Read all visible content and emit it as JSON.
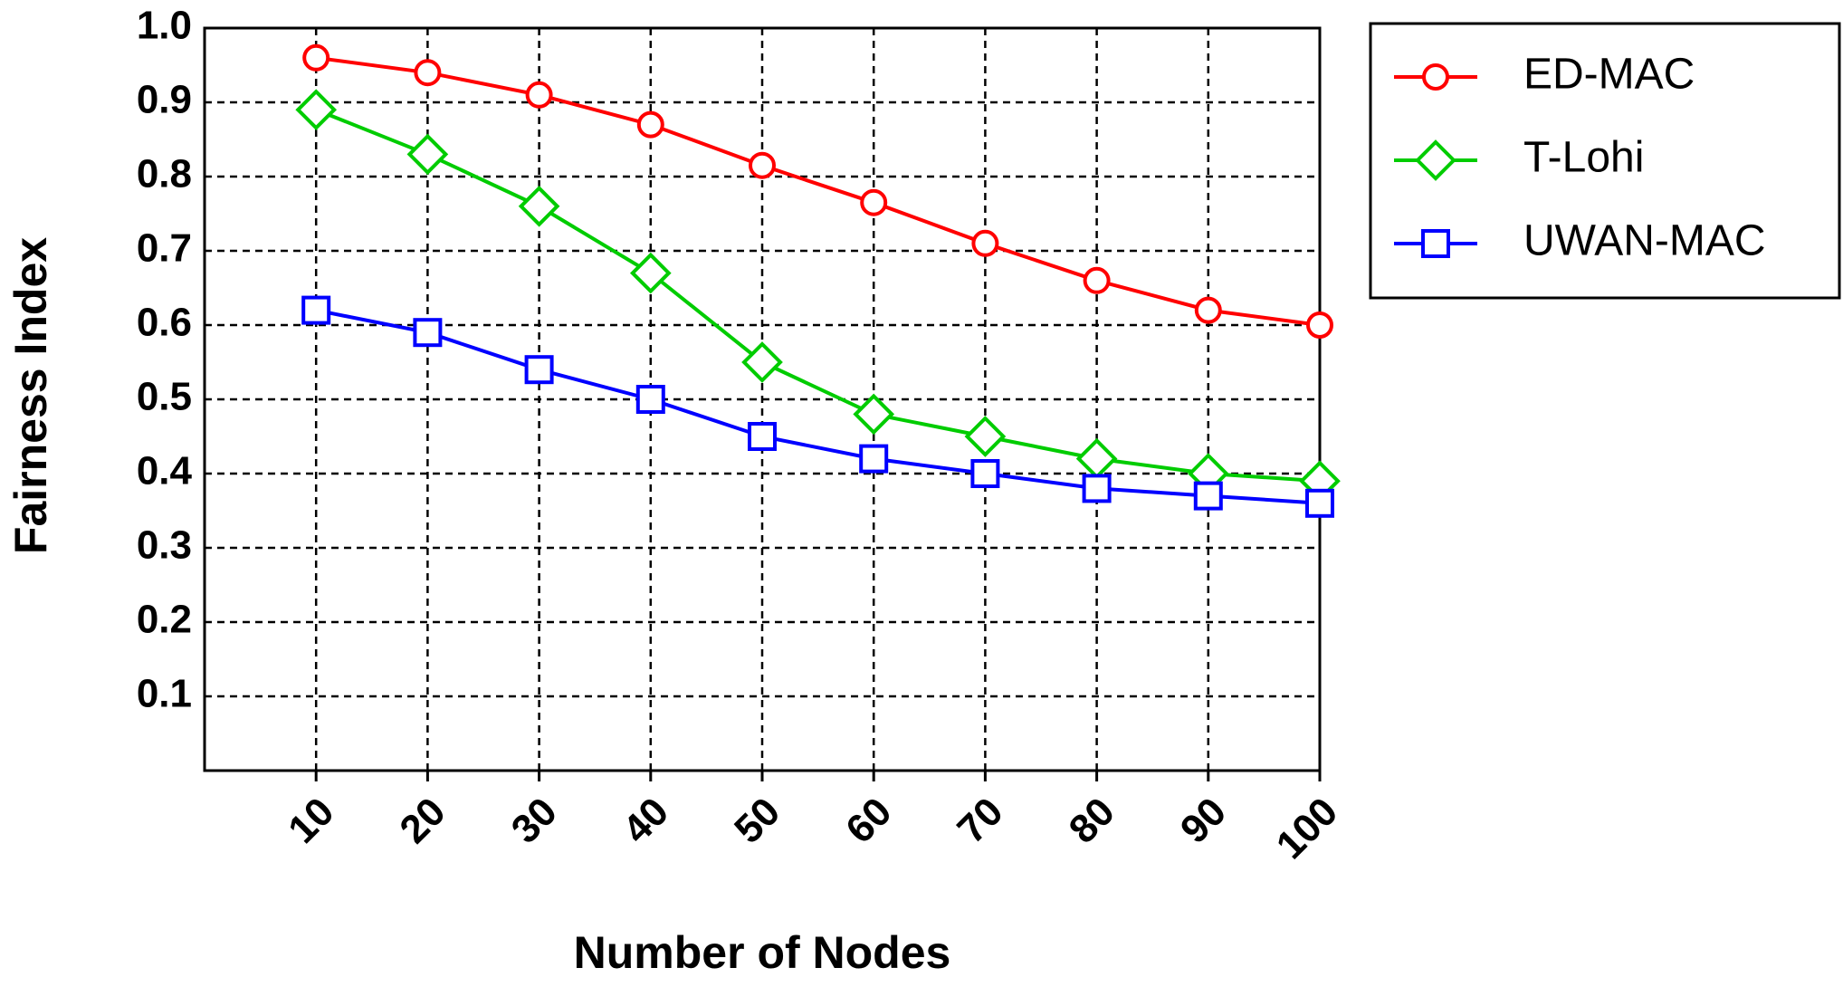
{
  "chart_data": {
    "type": "line",
    "x_label": "Number of Nodes",
    "y_label": "Fairness Index",
    "x": [
      10,
      20,
      30,
      40,
      50,
      60,
      70,
      80,
      90,
      100
    ],
    "series": [
      {
        "name": "ED-MAC",
        "color": "#ff0000",
        "marker": "circle",
        "values": [
          0.96,
          0.94,
          0.91,
          0.87,
          0.815,
          0.765,
          0.71,
          0.66,
          0.62,
          0.6
        ]
      },
      {
        "name": "T-Lohi",
        "color": "#00cc00",
        "marker": "diamond",
        "values": [
          0.89,
          0.83,
          0.76,
          0.67,
          0.55,
          0.48,
          0.45,
          0.42,
          0.4,
          0.39
        ]
      },
      {
        "name": "UWAN-MAC",
        "color": "#0000ff",
        "marker": "square",
        "values": [
          0.62,
          0.59,
          0.54,
          0.5,
          0.45,
          0.42,
          0.4,
          0.38,
          0.37,
          0.36
        ]
      }
    ],
    "xlim": [
      0,
      100
    ],
    "xticks": [
      10,
      20,
      30,
      40,
      50,
      60,
      70,
      80,
      90,
      100
    ],
    "ylim": [
      0,
      1
    ],
    "yticks": [
      0.1,
      0.2,
      0.3,
      0.4,
      0.5,
      0.6,
      0.7,
      0.8,
      0.9,
      {
        "value": 1,
        "label": "1.0"
      }
    ],
    "grid": true,
    "legend": "outside-right"
  }
}
